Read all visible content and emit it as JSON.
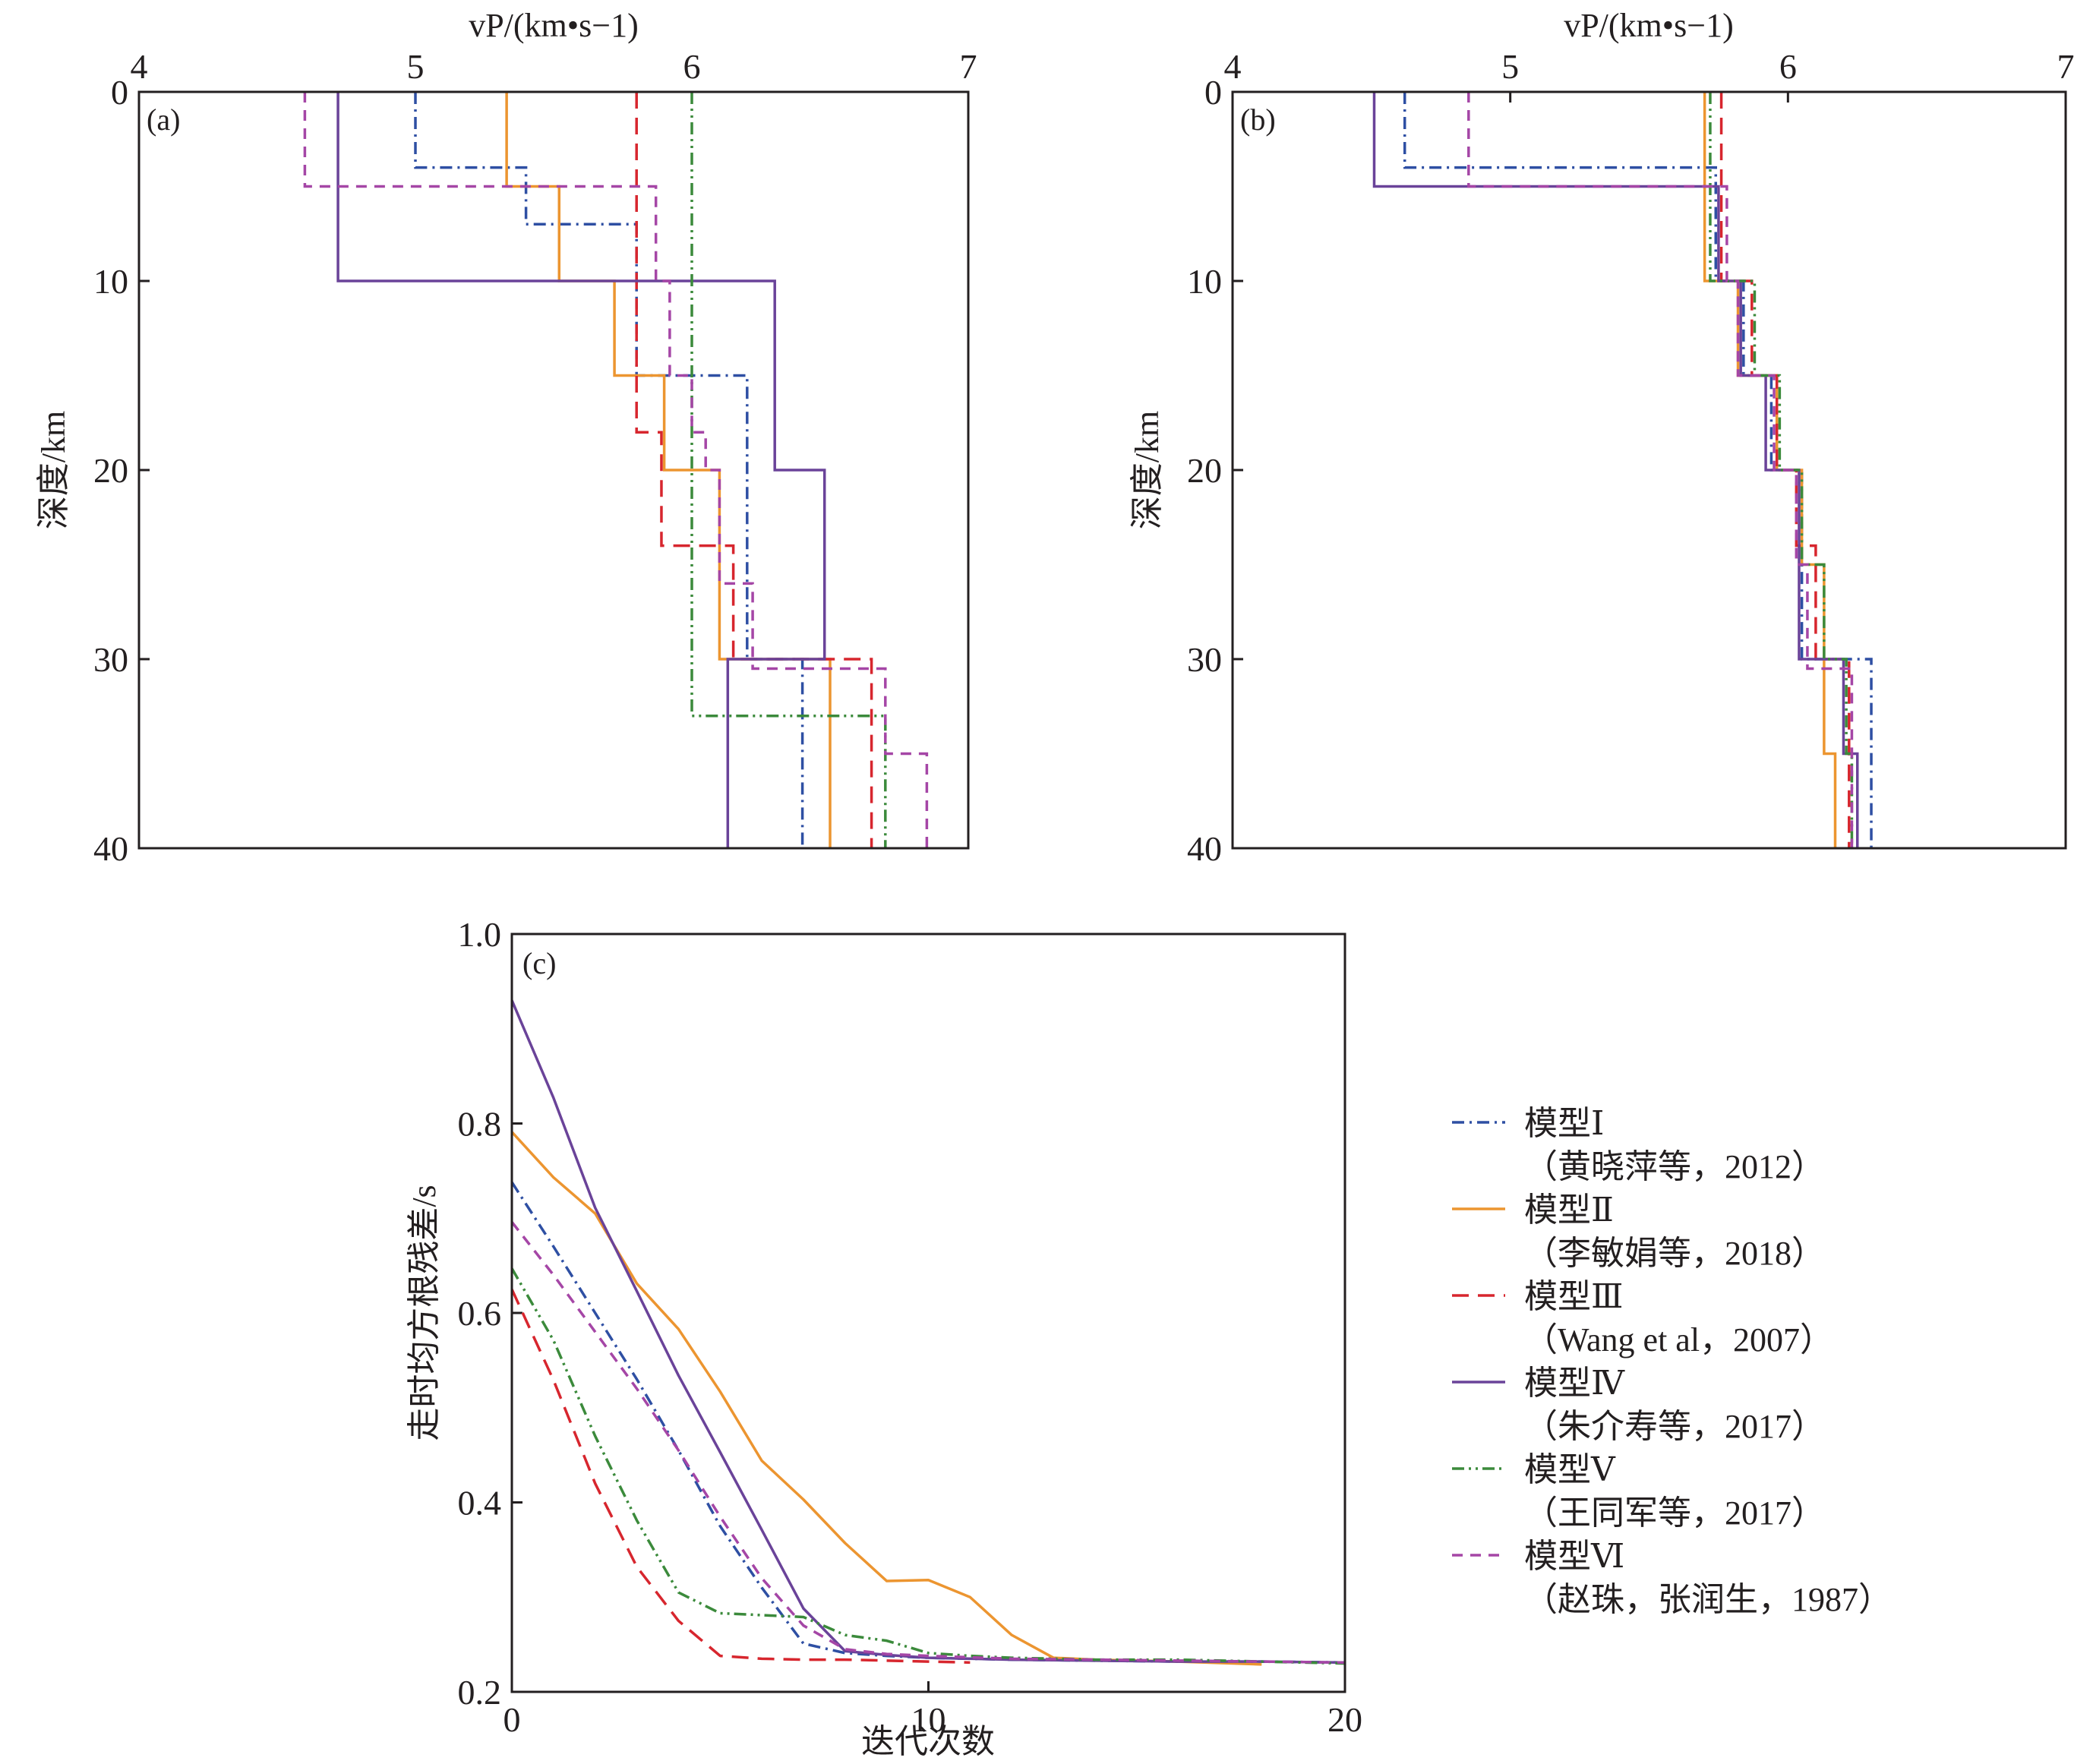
{
  "figure": {
    "legend": [
      {
        "name": "模型Ⅰ",
        "source": "（黄晓萍等，2012）",
        "color": "#2e4fa3",
        "dash": "dashdot"
      },
      {
        "name": "模型Ⅱ",
        "source": "（李敏娟等，2018）",
        "color": "#ec9530",
        "dash": "solid"
      },
      {
        "name": "模型Ⅲ",
        "source": "（Wang et al，2007）",
        "color": "#d7262e",
        "dash": "dashed"
      },
      {
        "name": "模型Ⅳ",
        "source": "（朱介寿等，2017）",
        "color": "#6a4399",
        "dash": "solid"
      },
      {
        "name": "模型Ⅴ",
        "source": "（王同军等，2017）",
        "color": "#3b8a3b",
        "dash": "dashdotdot"
      },
      {
        "name": "模型Ⅵ",
        "source": "（赵珠，张润生，1987）",
        "color": "#a546a6",
        "dash": "shortdash"
      }
    ]
  },
  "chart_data": [
    {
      "id": "a",
      "panel_label": "(a)",
      "type": "line",
      "subtype": "step-profile",
      "title": "",
      "xlabel": "vP/(km•s−1)",
      "ylabel": "深度/km",
      "xlim": [
        4,
        7
      ],
      "ylim": [
        0,
        40
      ],
      "y_inverted": true,
      "x_axis_position": "top",
      "xticks": [
        4,
        5,
        6,
        7
      ],
      "yticks": [
        0,
        10,
        20,
        30,
        40
      ],
      "grid": false,
      "series": [
        {
          "name": "模型Ⅰ",
          "layers": [
            [
              0,
              4,
              5.0
            ],
            [
              4,
              7,
              5.4
            ],
            [
              7,
              15,
              5.8
            ],
            [
              15,
              30,
              6.2
            ],
            [
              30,
              40,
              6.4
            ]
          ]
        },
        {
          "name": "模型Ⅱ",
          "layers": [
            [
              0,
              5,
              5.33
            ],
            [
              5,
              10,
              5.52
            ],
            [
              10,
              15,
              5.72
            ],
            [
              15,
              20,
              5.9
            ],
            [
              20,
              30,
              6.1
            ],
            [
              30,
              40,
              6.5
            ]
          ]
        },
        {
          "name": "模型Ⅲ",
          "layers": [
            [
              0,
              18,
              5.8
            ],
            [
              18,
              24,
              5.89
            ],
            [
              24,
              30,
              6.15
            ],
            [
              30,
              40,
              6.65
            ]
          ]
        },
        {
          "name": "模型Ⅳ",
          "layers": [
            [
              0,
              10,
              4.72
            ],
            [
              10,
              20,
              6.3
            ],
            [
              20,
              30,
              6.48
            ],
            [
              30,
              40,
              6.13
            ]
          ]
        },
        {
          "name": "模型Ⅴ",
          "layers": [
            [
              0,
              33,
              6.0
            ],
            [
              33,
              40,
              6.7
            ]
          ]
        },
        {
          "name": "模型Ⅵ",
          "layers": [
            [
              0,
              5,
              4.6
            ],
            [
              5,
              10,
              5.87
            ],
            [
              10,
              15,
              5.92
            ],
            [
              15,
              18,
              6.0
            ],
            [
              18,
              20,
              6.05
            ],
            [
              20,
              26,
              6.1
            ],
            [
              26,
              30.5,
              6.22
            ],
            [
              30.5,
              35,
              6.7
            ],
            [
              35,
              40,
              6.85
            ]
          ]
        }
      ]
    },
    {
      "id": "b",
      "panel_label": "(b)",
      "type": "line",
      "subtype": "step-profile",
      "title": "",
      "xlabel": "vP/(km•s−1)",
      "ylabel": "深度/km",
      "xlim": [
        4,
        7
      ],
      "ylim": [
        0,
        40
      ],
      "y_inverted": true,
      "x_axis_position": "top",
      "xticks": [
        4,
        5,
        6,
        7
      ],
      "yticks": [
        0,
        10,
        20,
        30,
        40
      ],
      "grid": false,
      "series": [
        {
          "name": "模型Ⅰ",
          "layers": [
            [
              0,
              4,
              4.62
            ],
            [
              4,
              10,
              5.74
            ],
            [
              10,
              15,
              5.84
            ],
            [
              15,
              20,
              5.94
            ],
            [
              20,
              30,
              6.05
            ],
            [
              30,
              40,
              6.3
            ]
          ]
        },
        {
          "name": "模型Ⅱ",
          "layers": [
            [
              0,
              10,
              5.7
            ],
            [
              10,
              15,
              5.82
            ],
            [
              15,
              20,
              5.96
            ],
            [
              20,
              25,
              6.05
            ],
            [
              25,
              35,
              6.13
            ],
            [
              35,
              40,
              6.17
            ]
          ]
        },
        {
          "name": "模型Ⅲ",
          "layers": [
            [
              0,
              10,
              5.76
            ],
            [
              10,
              15,
              5.87
            ],
            [
              15,
              20,
              5.96
            ],
            [
              20,
              24,
              6.03
            ],
            [
              24,
              30,
              6.1
            ],
            [
              30,
              40,
              6.22
            ]
          ]
        },
        {
          "name": "模型Ⅳ",
          "layers": [
            [
              0,
              5,
              4.51
            ],
            [
              5,
              10,
              5.75
            ],
            [
              10,
              15,
              5.83
            ],
            [
              15,
              20,
              5.92
            ],
            [
              20,
              30,
              6.04
            ],
            [
              30,
              35,
              6.2
            ],
            [
              35,
              40,
              6.25
            ]
          ]
        },
        {
          "name": "模型Ⅴ",
          "layers": [
            [
              0,
              10,
              5.72
            ],
            [
              10,
              15,
              5.88
            ],
            [
              15,
              20,
              5.97
            ],
            [
              20,
              25,
              6.05
            ],
            [
              25,
              30,
              6.13
            ],
            [
              30,
              35,
              6.21
            ],
            [
              35,
              40,
              6.23
            ]
          ]
        },
        {
          "name": "模型Ⅵ",
          "layers": [
            [
              0,
              5,
              4.85
            ],
            [
              5,
              10,
              5.78
            ],
            [
              10,
              15,
              5.82
            ],
            [
              15,
              20,
              5.95
            ],
            [
              20,
              25,
              6.03
            ],
            [
              25,
              30.5,
              6.07
            ],
            [
              30.5,
              40,
              6.23
            ]
          ]
        }
      ]
    },
    {
      "id": "c",
      "panel_label": "(c)",
      "type": "line",
      "title": "",
      "xlabel": "迭代次数",
      "ylabel": "走时均方根残差/s",
      "xlim": [
        0,
        20
      ],
      "ylim": [
        0.2,
        1.0
      ],
      "xticks": [
        0,
        10,
        20
      ],
      "yticks": [
        0.2,
        0.4,
        0.6,
        0.8,
        1.0
      ],
      "ytick_labels": [
        "0.2",
        "0.4",
        "0.6",
        "0.8",
        "1.0"
      ],
      "grid": false,
      "legend_position": "right",
      "series": [
        {
          "name": "模型Ⅰ",
          "x": [
            0,
            1,
            2,
            3,
            4,
            5,
            6,
            7,
            8,
            9,
            10,
            12,
            14,
            16,
            18,
            20
          ],
          "y": [
            0.738,
            0.67,
            0.6,
            0.53,
            0.455,
            0.375,
            0.31,
            0.251,
            0.241,
            0.238,
            0.236,
            0.234,
            0.233,
            0.232,
            0.232,
            0.231
          ]
        },
        {
          "name": "模型Ⅱ",
          "x": [
            0,
            1,
            2,
            3,
            4,
            5,
            6,
            7,
            8,
            9,
            10,
            11,
            12,
            13,
            14,
            16,
            18
          ],
          "y": [
            0.791,
            0.743,
            0.705,
            0.631,
            0.583,
            0.517,
            0.444,
            0.403,
            0.357,
            0.317,
            0.318,
            0.3,
            0.26,
            0.236,
            0.234,
            0.232,
            0.229
          ]
        },
        {
          "name": "模型Ⅲ",
          "x": [
            0,
            1,
            2,
            3,
            4,
            5,
            6,
            7,
            8,
            9,
            10,
            11
          ],
          "y": [
            0.625,
            0.529,
            0.42,
            0.332,
            0.275,
            0.238,
            0.235,
            0.234,
            0.234,
            0.233,
            0.232,
            0.231
          ]
        },
        {
          "name": "模型Ⅳ",
          "x": [
            0,
            1,
            2,
            3,
            4,
            5,
            6,
            7,
            8,
            9,
            10,
            12,
            14,
            16,
            18,
            20
          ],
          "y": [
            0.93,
            0.827,
            0.711,
            0.623,
            0.534,
            0.453,
            0.371,
            0.288,
            0.243,
            0.239,
            0.236,
            0.234,
            0.233,
            0.232,
            0.232,
            0.231
          ]
        },
        {
          "name": "模型Ⅴ",
          "x": [
            0,
            1,
            2,
            3,
            4,
            5,
            6,
            7,
            8,
            9,
            10,
            11,
            12,
            14,
            16,
            18,
            20
          ],
          "y": [
            0.647,
            0.571,
            0.47,
            0.381,
            0.305,
            0.283,
            0.281,
            0.279,
            0.26,
            0.254,
            0.241,
            0.238,
            0.236,
            0.234,
            0.234,
            0.232,
            0.23
          ]
        },
        {
          "name": "模型Ⅵ",
          "x": [
            0,
            1,
            2,
            3,
            4,
            5,
            6,
            7,
            8,
            9,
            10,
            12,
            14,
            16,
            18,
            20
          ],
          "y": [
            0.696,
            0.64,
            0.58,
            0.52,
            0.455,
            0.385,
            0.32,
            0.27,
            0.245,
            0.24,
            0.238,
            0.235,
            0.234,
            0.233,
            0.232,
            0.231
          ]
        }
      ]
    }
  ]
}
